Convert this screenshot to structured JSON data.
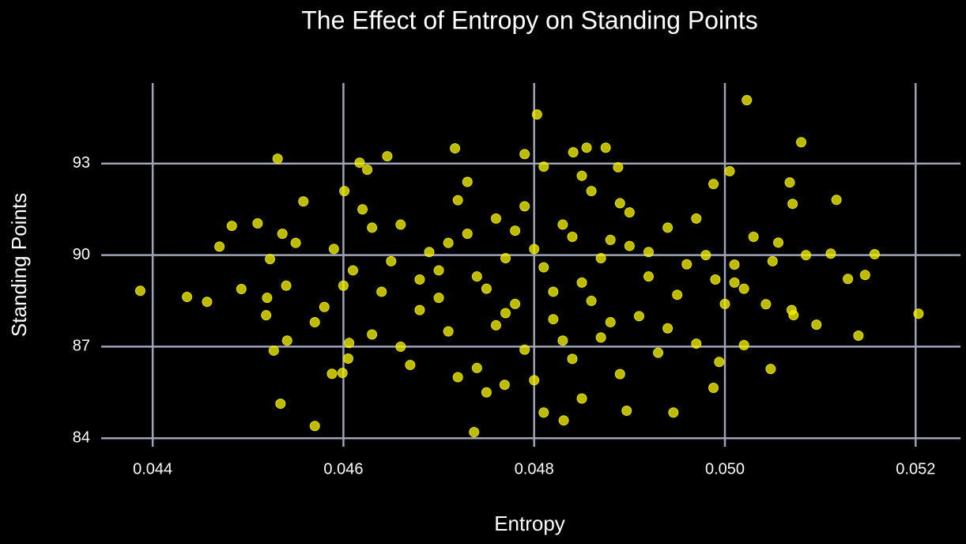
{
  "chart_data": {
    "type": "scatter",
    "title": "The Effect of Entropy on Standing Points",
    "x_label": "Entropy",
    "y_label": "Standing Points",
    "color": "#f2ee00",
    "grid": true,
    "xlim": [
      0.04346,
      0.05247
    ],
    "ylim": [
      83.72,
      95.64
    ],
    "xticks": [
      0.044,
      0.046,
      0.048,
      {
        "value": 0.05,
        "label": "0.050"
      },
      0.052
    ],
    "yticks": [
      84,
      87,
      90,
      93
    ],
    "x": [
      0.04387,
      0.04436,
      0.04457,
      0.0447,
      0.04483,
      0.04493,
      0.0451,
      0.04531,
      0.04534,
      0.04536,
      0.04558,
      0.0457,
      0.04523,
      0.04519,
      0.04527,
      0.04541,
      0.04588,
      0.04599,
      0.04606,
      0.04605,
      0.04601,
      0.04617,
      0.04625,
      0.04646,
      0.04717,
      0.04737,
      0.04769,
      0.0479,
      0.04803,
      0.04855,
      0.04875,
      0.04841,
      0.04888,
      0.04831,
      0.0481,
      0.04897,
      0.04946,
      0.04988,
      0.05023,
      0.05005,
      0.04988,
      0.0508,
      0.05068,
      0.05071,
      0.05117,
      0.05157,
      0.05203,
      0.0514,
      0.05147,
      0.05129,
      0.05096,
      0.05111,
      0.05048,
      0.0502,
      0.04994,
      0.05043,
      0.05056,
      0.05085,
      0.05072,
      0.0501,
      0.047,
      0.0475,
      0.048,
      0.0485,
      0.0478,
      0.0482,
      0.0473,
      0.0488,
      0.0465,
      0.0492,
      0.0468,
      0.0495,
      0.0476,
      0.0483,
      0.0471,
      0.0487,
      0.046,
      0.0498,
      0.0463,
      0.049,
      0.0479,
      0.0484,
      0.0466,
      0.0494,
      0.0472,
      0.0486,
      0.0458,
      0.0501,
      0.0455,
      0.0503,
      0.0474,
      0.0489,
      0.0462,
      0.0497,
      0.0477,
      0.0481,
      0.0469,
      0.0491,
      0.0464,
      0.0496,
      0.0457,
      0.05,
      0.0473,
      0.0485,
      0.048,
      0.0467,
      0.0493,
      0.0478,
      0.0482,
      0.0476,
      0.0487,
      0.0461,
      0.0499,
      0.0454,
      0.0505,
      0.047,
      0.049,
      0.0466,
      0.0494,
      0.0474,
      0.0486,
      0.0479,
      0.0483,
      0.0459,
      0.0502,
      0.0471,
      0.0488,
      0.0463,
      0.0497,
      0.0477,
      0.0484,
      0.0468,
      0.0492,
      0.0452,
      0.0507,
      0.0475,
      0.0485,
      0.0481,
      0.0472,
      0.0489
    ],
    "values": [
      88.83,
      88.63,
      88.47,
      90.28,
      90.96,
      88.89,
      91.04,
      93.16,
      85.13,
      90.7,
      91.76,
      84.4,
      89.87,
      88.03,
      86.87,
      87.2,
      86.11,
      86.14,
      87.12,
      86.61,
      92.1,
      93.03,
      92.8,
      93.24,
      93.5,
      84.2,
      85.75,
      93.31,
      94.61,
      93.52,
      93.52,
      93.37,
      92.88,
      84.58,
      84.84,
      84.9,
      84.84,
      85.65,
      95.08,
      92.75,
      92.33,
      93.7,
      92.38,
      91.68,
      91.81,
      90.03,
      88.08,
      87.36,
      89.35,
      89.22,
      87.72,
      90.05,
      86.27,
      87.05,
      86.5,
      88.39,
      90.41,
      90.0,
      88.03,
      89.69,
      89.5,
      88.9,
      90.2,
      89.1,
      88.4,
      87.9,
      90.7,
      90.5,
      89.8,
      89.3,
      88.2,
      88.7,
      91.2,
      91.0,
      87.5,
      87.3,
      89.0,
      90.0,
      90.9,
      91.4,
      86.9,
      86.6,
      87.0,
      87.6,
      91.8,
      92.1,
      88.3,
      89.1,
      90.4,
      90.6,
      86.3,
      86.1,
      91.5,
      91.2,
      89.9,
      89.6,
      90.1,
      88.0,
      88.8,
      89.7,
      87.8,
      88.4,
      92.4,
      92.6,
      85.9,
      86.4,
      86.8,
      90.8,
      88.8,
      87.7,
      89.9,
      89.5,
      89.2,
      89.0,
      89.8,
      88.6,
      90.3,
      91.0,
      90.9,
      89.3,
      88.5,
      91.6,
      87.2,
      90.2,
      88.9,
      90.4,
      87.8,
      87.4,
      87.1,
      88.1,
      90.6,
      89.2,
      90.1,
      88.6,
      88.2,
      85.5,
      85.3,
      92.9,
      86.0,
      91.7
    ]
  }
}
